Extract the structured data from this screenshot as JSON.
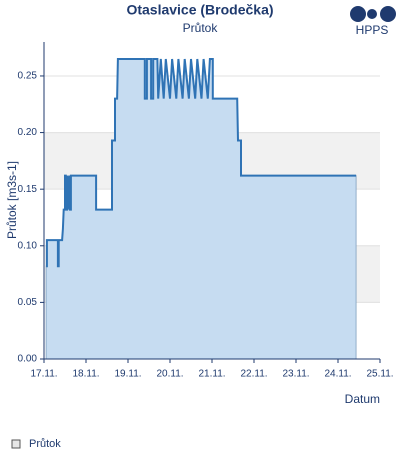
{
  "chart_data": {
    "type": "area",
    "title": "Otaslavice (Brodečka)",
    "subtitle": "Průtok",
    "logo": "HPPS",
    "y_label": "Průtok [m3s-1]",
    "x_label": "Datum",
    "grid": true,
    "xlim": [
      17,
      25
    ],
    "xticks": [
      {
        "value": 17,
        "label": "17.11."
      },
      {
        "value": 18,
        "label": "18.11."
      },
      {
        "value": 19,
        "label": "19.11."
      },
      {
        "value": 20,
        "label": "20.11."
      },
      {
        "value": 21,
        "label": "21.11."
      },
      {
        "value": 22,
        "label": "22.11."
      },
      {
        "value": 23,
        "label": "23.11."
      },
      {
        "value": 24,
        "label": "24.11."
      },
      {
        "value": 25,
        "label": "25.11."
      }
    ],
    "ylim": [
      0,
      0.28
    ],
    "yticks": [
      {
        "value": 0,
        "label": "0.00"
      },
      {
        "value": 0.05,
        "label": "0.05"
      },
      {
        "value": 0.1,
        "label": "0.10"
      },
      {
        "value": 0.15,
        "label": "0.15"
      },
      {
        "value": 0.2,
        "label": "0.20"
      },
      {
        "value": 0.25,
        "label": "0.25"
      }
    ],
    "series": [
      {
        "name": "Průtok",
        "color": "#2f73b5",
        "fill": "#c6dcf1",
        "x": [
          17.05,
          17.07,
          17.07,
          17.33,
          17.33,
          17.35,
          17.35,
          17.43,
          17.45,
          17.47,
          17.5,
          17.5,
          17.52,
          17.52,
          17.55,
          17.55,
          17.57,
          17.6,
          17.62,
          17.64,
          17.64,
          18.24,
          18.24,
          18.62,
          18.62,
          18.69,
          18.69,
          18.74,
          18.76,
          19.4,
          19.4,
          19.45,
          19.45,
          19.55,
          19.55,
          19.6,
          19.6,
          19.7,
          19.72,
          19.78,
          19.85,
          19.9,
          20.0,
          20.05,
          20.15,
          20.2,
          20.3,
          20.35,
          20.45,
          20.5,
          20.6,
          20.65,
          20.75,
          20.8,
          20.9,
          20.95,
          21.02,
          21.02,
          21.6,
          21.62,
          21.69,
          21.69,
          24.43
        ],
        "values": [
          0.082,
          0.082,
          0.105,
          0.105,
          0.082,
          0.082,
          0.105,
          0.105,
          0.115,
          0.132,
          0.132,
          0.162,
          0.162,
          0.132,
          0.132,
          0.162,
          0.132,
          0.162,
          0.132,
          0.132,
          0.162,
          0.162,
          0.132,
          0.132,
          0.193,
          0.193,
          0.23,
          0.23,
          0.265,
          0.265,
          0.23,
          0.23,
          0.265,
          0.265,
          0.23,
          0.23,
          0.265,
          0.265,
          0.23,
          0.265,
          0.23,
          0.265,
          0.23,
          0.265,
          0.23,
          0.265,
          0.23,
          0.265,
          0.23,
          0.265,
          0.23,
          0.265,
          0.23,
          0.265,
          0.23,
          0.265,
          0.265,
          0.23,
          0.23,
          0.193,
          0.193,
          0.162,
          0.162
        ]
      }
    ]
  }
}
